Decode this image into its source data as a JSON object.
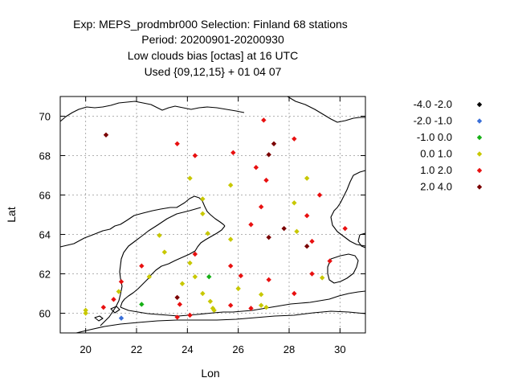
{
  "chart_data": {
    "type": "scatter",
    "title_lines": [
      "Exp: MEPS_prodmbr000   Selection: Finland      68 stations",
      "Period: 20200901-20200930",
      "Low clouds bias [octas] at  16 UTC",
      "Used {09,12,15} + 01 04 07"
    ],
    "xlabel": "Lon",
    "ylabel": "Lat",
    "xlim": [
      19,
      31
    ],
    "ylim": [
      59,
      71
    ],
    "xticks": [
      20,
      22,
      24,
      26,
      28,
      30
    ],
    "yticks": [
      60,
      62,
      64,
      66,
      68,
      70
    ],
    "grid": true,
    "legend_position": "outside-right",
    "series": [
      {
        "name": "-4.0 -2.0",
        "color": "#000000",
        "points": []
      },
      {
        "name": "-2.0 -1.0",
        "color": "#3a6fd8",
        "points": [
          [
            21.4,
            59.75
          ]
        ]
      },
      {
        "name": "-1.0 0.0",
        "color": "#16b016",
        "points": [
          [
            22.2,
            60.45
          ],
          [
            24.85,
            61.85
          ]
        ]
      },
      {
        "name": "0.0 1.0",
        "color": "#c8c800",
        "points": [
          [
            20.0,
            60.15
          ],
          [
            20.0,
            60.0
          ],
          [
            21.3,
            61.1
          ],
          [
            22.5,
            61.85
          ],
          [
            22.9,
            63.95
          ],
          [
            23.1,
            63.1
          ],
          [
            23.8,
            61.5
          ],
          [
            24.1,
            66.85
          ],
          [
            24.1,
            62.55
          ],
          [
            24.3,
            61.85
          ],
          [
            24.6,
            65.8
          ],
          [
            24.6,
            65.05
          ],
          [
            24.6,
            61.0
          ],
          [
            24.8,
            64.05
          ],
          [
            24.9,
            60.6
          ],
          [
            25.0,
            60.25
          ],
          [
            25.05,
            60.15
          ],
          [
            25.7,
            66.5
          ],
          [
            25.7,
            63.75
          ],
          [
            26.0,
            61.25
          ],
          [
            26.9,
            60.95
          ],
          [
            26.9,
            60.4
          ],
          [
            27.1,
            60.3
          ],
          [
            28.2,
            65.6
          ],
          [
            28.3,
            64.15
          ],
          [
            28.7,
            66.85
          ],
          [
            29.3,
            61.8
          ]
        ]
      },
      {
        "name": "1.0 2.0",
        "color": "#e81010",
        "points": [
          [
            20.7,
            60.3
          ],
          [
            21.1,
            60.7
          ],
          [
            21.4,
            61.6
          ],
          [
            22.2,
            62.4
          ],
          [
            23.6,
            68.6
          ],
          [
            23.6,
            59.8
          ],
          [
            23.7,
            60.45
          ],
          [
            24.1,
            59.9
          ],
          [
            24.3,
            68.0
          ],
          [
            24.3,
            63.0
          ],
          [
            25.7,
            62.4
          ],
          [
            25.7,
            60.4
          ],
          [
            25.8,
            68.15
          ],
          [
            26.1,
            61.9
          ],
          [
            26.5,
            64.5
          ],
          [
            26.5,
            60.25
          ],
          [
            26.7,
            67.4
          ],
          [
            26.9,
            65.4
          ],
          [
            27.0,
            69.8
          ],
          [
            27.1,
            66.75
          ],
          [
            27.2,
            61.7
          ],
          [
            28.2,
            68.85
          ],
          [
            28.2,
            61.0
          ],
          [
            28.7,
            64.95
          ],
          [
            28.9,
            63.65
          ],
          [
            28.9,
            62.0
          ],
          [
            29.2,
            66.0
          ],
          [
            29.6,
            62.65
          ],
          [
            30.2,
            64.3
          ]
        ]
      },
      {
        "name": "2.0 4.0",
        "color": "#7a0000",
        "points": [
          [
            20.8,
            69.05
          ],
          [
            23.6,
            60.8
          ],
          [
            27.2,
            63.85
          ],
          [
            27.2,
            68.05
          ],
          [
            27.4,
            68.6
          ],
          [
            27.8,
            64.3
          ],
          [
            28.7,
            63.4
          ]
        ]
      }
    ]
  }
}
